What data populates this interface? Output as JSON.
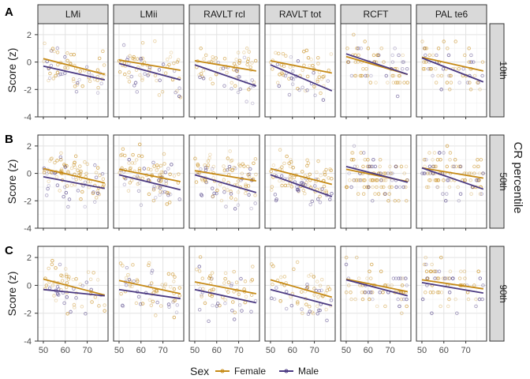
{
  "chart_data": {
    "type": "scatter",
    "panel_rows": [
      "A",
      "B",
      "C"
    ],
    "row_strips": [
      "10th",
      "50th",
      "90th"
    ],
    "facet_row_title": "CR percentile",
    "columns": [
      "LMi",
      "LMii",
      "RAVLT rcl",
      "RAVLT tot",
      "RCFT",
      "PAL te6"
    ],
    "ylabel": "Score (z)",
    "ylim": [
      -4,
      2.8
    ],
    "yticks": [
      "-4",
      "-2",
      "0",
      "2"
    ],
    "xlim": [
      47.5,
      79.5
    ],
    "xticks": [
      "50",
      "60",
      "70"
    ],
    "grid": true,
    "legend": {
      "title": "Sex",
      "position": "bottom",
      "entries": [
        {
          "name": "Female",
          "color": "#C68A16"
        },
        {
          "name": "Male",
          "color": "#4B3A82"
        }
      ]
    },
    "fit_lines": [
      [
        {
          "female": [
            [
              50,
              0.25
            ],
            [
              78,
              -0.9
            ]
          ],
          "male": [
            [
              50,
              -0.3
            ],
            [
              78,
              -1.3
            ]
          ]
        },
        {
          "female": [
            [
              50,
              0.15
            ],
            [
              78,
              -0.6
            ]
          ],
          "male": [
            [
              50,
              -0.1
            ],
            [
              78,
              -1.3
            ]
          ]
        },
        {
          "female": [
            [
              50,
              0.1
            ],
            [
              78,
              -0.65
            ]
          ],
          "male": [
            [
              50,
              -0.2
            ],
            [
              78,
              -1.75
            ]
          ]
        },
        {
          "female": [
            [
              50,
              0.1
            ],
            [
              78,
              -0.8
            ]
          ],
          "male": [
            [
              50,
              -0.2
            ],
            [
              78,
              -2.1
            ]
          ]
        },
        {
          "female": [
            [
              50,
              0.4
            ],
            [
              78,
              -0.9
            ]
          ],
          "male": [
            [
              50,
              0.6
            ],
            [
              78,
              -0.9
            ]
          ]
        },
        {
          "female": [
            [
              50,
              0.35
            ],
            [
              78,
              -0.65
            ]
          ],
          "male": [
            [
              50,
              0.3
            ],
            [
              78,
              -1.45
            ]
          ]
        }
      ],
      [
        {
          "female": [
            [
              50,
              0.35
            ],
            [
              78,
              -0.7
            ]
          ],
          "male": [
            [
              50,
              -0.25
            ],
            [
              78,
              -1.1
            ]
          ]
        },
        {
          "female": [
            [
              50,
              0.3
            ],
            [
              78,
              -0.6
            ]
          ],
          "male": [
            [
              50,
              -0.1
            ],
            [
              78,
              -1.2
            ]
          ]
        },
        {
          "female": [
            [
              50,
              0.2
            ],
            [
              78,
              -0.55
            ]
          ],
          "male": [
            [
              50,
              -0.1
            ],
            [
              78,
              -1.4
            ]
          ]
        },
        {
          "female": [
            [
              50,
              0.35
            ],
            [
              78,
              -0.8
            ]
          ],
          "male": [
            [
              50,
              -0.1
            ],
            [
              78,
              -1.7
            ]
          ]
        },
        {
          "female": [
            [
              50,
              0.3
            ],
            [
              78,
              -0.6
            ]
          ],
          "male": [
            [
              50,
              0.5
            ],
            [
              78,
              -0.65
            ]
          ]
        },
        {
          "female": [
            [
              50,
              0.4
            ],
            [
              78,
              -0.35
            ]
          ],
          "male": [
            [
              50,
              0.4
            ],
            [
              78,
              -1.15
            ]
          ]
        }
      ],
      [
        {
          "female": [
            [
              50,
              0.45
            ],
            [
              78,
              -0.7
            ]
          ],
          "male": [
            [
              50,
              -0.3
            ],
            [
              78,
              -0.75
            ]
          ]
        },
        {
          "female": [
            [
              50,
              0.35
            ],
            [
              78,
              -0.6
            ]
          ],
          "male": [
            [
              50,
              -0.3
            ],
            [
              78,
              -0.95
            ]
          ]
        },
        {
          "female": [
            [
              50,
              0.25
            ],
            [
              78,
              -0.6
            ]
          ],
          "male": [
            [
              50,
              -0.3
            ],
            [
              78,
              -1.25
            ]
          ]
        },
        {
          "female": [
            [
              50,
              0.4
            ],
            [
              78,
              -0.85
            ]
          ],
          "male": [
            [
              50,
              -0.3
            ],
            [
              78,
              -1.45
            ]
          ]
        },
        {
          "female": [
            [
              50,
              0.45
            ],
            [
              78,
              -0.45
            ]
          ],
          "male": [
            [
              50,
              0.4
            ],
            [
              78,
              -0.75
            ]
          ]
        },
        {
          "female": [
            [
              50,
              0.4
            ],
            [
              78,
              -0.25
            ]
          ],
          "male": [
            [
              50,
              0.2
            ],
            [
              78,
              -0.55
            ]
          ]
        }
      ]
    ]
  }
}
